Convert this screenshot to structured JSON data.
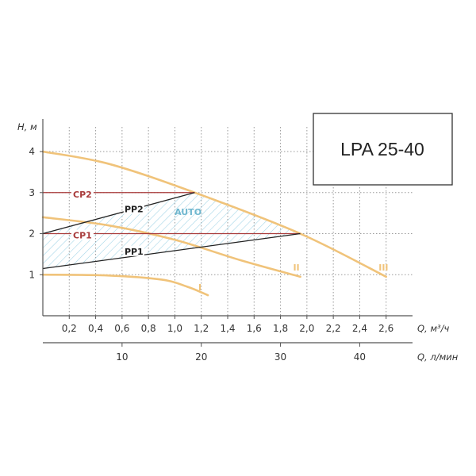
{
  "model_label": "LPA 25-40",
  "colors": {
    "curve": "#f0c37a",
    "constant_pressure": "#a83a3a",
    "proportional_pressure": "#222222",
    "auto_hatch": "#9fd3e6",
    "auto_text": "#6fb7cf"
  },
  "chart_data": {
    "type": "line",
    "xlabel": "Q, м³/ч",
    "ylabel": "H, м",
    "secondary_xlabel": "Q, л/мин",
    "xlim": [
      0,
      2.8
    ],
    "ylim": [
      0,
      4.6
    ],
    "x_ticks": [
      "0,2",
      "0,4",
      "0,6",
      "0,8",
      "1,0",
      "1,2",
      "1,4",
      "1,6",
      "1,8",
      "2,0",
      "2,2",
      "2,4",
      "2,6"
    ],
    "x_tick_values": [
      0.2,
      0.4,
      0.6,
      0.8,
      1.0,
      1.2,
      1.4,
      1.6,
      1.8,
      2.0,
      2.2,
      2.4,
      2.6
    ],
    "y_ticks": [
      "1",
      "2",
      "3",
      "4"
    ],
    "y_tick_values": [
      1,
      2,
      3,
      4
    ],
    "secondary_x_ticks": [
      "10",
      "20",
      "30",
      "40"
    ],
    "secondary_x_tick_values": [
      10,
      20,
      30,
      40
    ],
    "grid": true,
    "series": [
      {
        "name": "I",
        "x": [
          0,
          0.5,
          0.9,
          1.1,
          1.25
        ],
        "y": [
          1.0,
          0.98,
          0.88,
          0.7,
          0.5
        ]
      },
      {
        "name": "II",
        "x": [
          0,
          0.5,
          1.0,
          1.5,
          1.95
        ],
        "y": [
          2.4,
          2.2,
          1.85,
          1.35,
          0.95
        ]
      },
      {
        "name": "III",
        "x": [
          0,
          0.5,
          1.15,
          1.95,
          2.6
        ],
        "y": [
          4.0,
          3.7,
          3.0,
          2.0,
          0.95
        ]
      },
      {
        "name": "CP2",
        "x": [
          0,
          1.15
        ],
        "y": [
          3.0,
          3.0
        ]
      },
      {
        "name": "CP1",
        "x": [
          0,
          1.95
        ],
        "y": [
          2.0,
          2.0
        ]
      },
      {
        "name": "PP2",
        "x": [
          0,
          1.15
        ],
        "y": [
          2.0,
          3.0
        ]
      },
      {
        "name": "PP1",
        "x": [
          0,
          1.95
        ],
        "y": [
          1.15,
          2.0
        ]
      }
    ],
    "region_label": "AUTO",
    "region": {
      "x": [
        0,
        1.15,
        1.95,
        0
      ],
      "y": [
        2.0,
        3.0,
        2.0,
        1.15
      ]
    }
  }
}
